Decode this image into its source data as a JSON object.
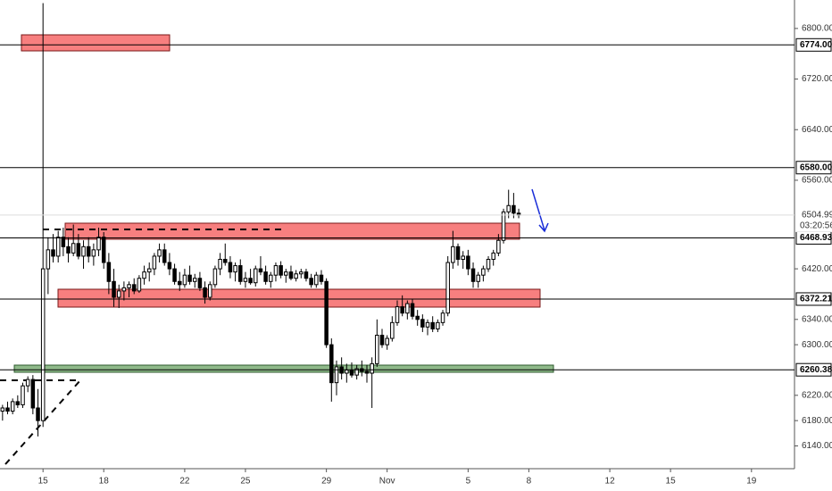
{
  "chart_data": {
    "type": "candlestick",
    "xlim": [
      -0.5,
      156.5
    ],
    "xticks": [
      {
        "value": 8,
        "label": "15"
      },
      {
        "value": 20,
        "label": "18"
      },
      {
        "value": 36,
        "label": "22"
      },
      {
        "value": 48,
        "label": "25"
      },
      {
        "value": 64,
        "label": "29"
      },
      {
        "value": 76,
        "label": "Nov"
      },
      {
        "value": 92,
        "label": "5"
      },
      {
        "value": 104,
        "label": "8"
      },
      {
        "value": 120,
        "label": "12"
      },
      {
        "value": 132,
        "label": "15"
      },
      {
        "value": 148,
        "label": "19"
      }
    ],
    "ylim": [
      6104,
      6845
    ],
    "yticks": [
      {
        "value": 6140,
        "label": "6140.00"
      },
      {
        "value": 6180,
        "label": "6180.00"
      },
      {
        "value": 6220,
        "label": "6220.00"
      },
      {
        "value": 6300,
        "label": "6300.00"
      },
      {
        "value": 6340,
        "label": "6340.00"
      },
      {
        "value": 6420,
        "label": "6420.00"
      },
      {
        "value": 6560,
        "label": "6560.00"
      },
      {
        "value": 6640,
        "label": "6640.00"
      },
      {
        "value": 6720,
        "label": "6720.00"
      },
      {
        "value": 6800,
        "label": "6800.00"
      }
    ],
    "up_color": "#ffffff",
    "down_color": "#000000",
    "price_lines": [
      {
        "value": 6774,
        "label": "6774.00"
      },
      {
        "value": 6580,
        "label": "6580.00"
      },
      {
        "value": 6468.93,
        "label": "6468.93"
      },
      {
        "value": 6372.21,
        "label": "6372.21"
      },
      {
        "value": 6260.38,
        "label": "6260.38"
      }
    ],
    "current_price": {
      "value": 6504.99,
      "label": "6504.99",
      "countdown": "03:20:56"
    },
    "ohlc": [
      [
        6195,
        6205,
        6180,
        6200
      ],
      [
        6200,
        6210,
        6190,
        6195
      ],
      [
        6195,
        6215,
        6190,
        6210
      ],
      [
        6210,
        6220,
        6200,
        6205
      ],
      [
        6205,
        6240,
        6200,
        6235
      ],
      [
        6235,
        6250,
        6225,
        6245
      ],
      [
        6245,
        6252,
        6190,
        6200
      ],
      [
        6200,
        6230,
        6155,
        6180
      ],
      [
        6180,
        6840,
        6170,
        6420
      ],
      [
        6420,
        6470,
        6380,
        6450
      ],
      [
        6450,
        6475,
        6430,
        6440
      ],
      [
        6440,
        6480,
        6430,
        6470
      ],
      [
        6470,
        6485,
        6440,
        6455
      ],
      [
        6455,
        6470,
        6430,
        6445
      ],
      [
        6445,
        6490,
        6440,
        6460
      ],
      [
        6460,
        6475,
        6435,
        6440
      ],
      [
        6440,
        6465,
        6420,
        6455
      ],
      [
        6455,
        6470,
        6430,
        6440
      ],
      [
        6440,
        6460,
        6425,
        6450
      ],
      [
        6450,
        6485,
        6440,
        6470
      ],
      [
        6470,
        6478,
        6420,
        6430
      ],
      [
        6430,
        6445,
        6380,
        6400
      ],
      [
        6400,
        6420,
        6360,
        6375
      ],
      [
        6375,
        6395,
        6358,
        6385
      ],
      [
        6385,
        6400,
        6370,
        6390
      ],
      [
        6390,
        6400,
        6375,
        6395
      ],
      [
        6395,
        6405,
        6380,
        6385
      ],
      [
        6385,
        6410,
        6382,
        6405
      ],
      [
        6405,
        6425,
        6395,
        6415
      ],
      [
        6415,
        6430,
        6400,
        6420
      ],
      [
        6420,
        6445,
        6410,
        6440
      ],
      [
        6440,
        6460,
        6430,
        6450
      ],
      [
        6450,
        6460,
        6425,
        6430
      ],
      [
        6430,
        6445,
        6410,
        6420
      ],
      [
        6420,
        6428,
        6395,
        6400
      ],
      [
        6400,
        6415,
        6385,
        6395
      ],
      [
        6395,
        6420,
        6390,
        6410
      ],
      [
        6410,
        6425,
        6395,
        6400
      ],
      [
        6400,
        6412,
        6390,
        6405
      ],
      [
        6405,
        6415,
        6385,
        6390
      ],
      [
        6390,
        6400,
        6365,
        6375
      ],
      [
        6375,
        6400,
        6370,
        6395
      ],
      [
        6395,
        6425,
        6390,
        6420
      ],
      [
        6420,
        6445,
        6410,
        6435
      ],
      [
        6435,
        6460,
        6425,
        6430
      ],
      [
        6430,
        6440,
        6405,
        6415
      ],
      [
        6415,
        6430,
        6400,
        6425
      ],
      [
        6425,
        6435,
        6395,
        6400
      ],
      [
        6400,
        6415,
        6390,
        6405
      ],
      [
        6405,
        6420,
        6395,
        6398
      ],
      [
        6398,
        6425,
        6392,
        6420
      ],
      [
        6420,
        6440,
        6410,
        6415
      ],
      [
        6415,
        6425,
        6395,
        6400
      ],
      [
        6400,
        6415,
        6390,
        6410
      ],
      [
        6410,
        6430,
        6400,
        6425
      ],
      [
        6425,
        6432,
        6405,
        6410
      ],
      [
        6410,
        6420,
        6398,
        6415
      ],
      [
        6415,
        6425,
        6402,
        6405
      ],
      [
        6405,
        6418,
        6400,
        6412
      ],
      [
        6412,
        6420,
        6405,
        6415
      ],
      [
        6415,
        6420,
        6400,
        6405
      ],
      [
        6405,
        6412,
        6390,
        6395
      ],
      [
        6395,
        6415,
        6390,
        6410
      ],
      [
        6410,
        6418,
        6395,
        6400
      ],
      [
        6400,
        6405,
        6295,
        6300
      ],
      [
        6300,
        6310,
        6210,
        6240
      ],
      [
        6240,
        6275,
        6220,
        6265
      ],
      [
        6265,
        6280,
        6245,
        6255
      ],
      [
        6255,
        6270,
        6240,
        6260
      ],
      [
        6260,
        6272,
        6248,
        6252
      ],
      [
        6252,
        6268,
        6245,
        6262
      ],
      [
        6262,
        6275,
        6250,
        6258
      ],
      [
        6258,
        6268,
        6240,
        6255
      ],
      [
        6255,
        6280,
        6200,
        6270
      ],
      [
        6270,
        6340,
        6265,
        6315
      ],
      [
        6315,
        6325,
        6295,
        6300
      ],
      [
        6300,
        6315,
        6292,
        6310
      ],
      [
        6310,
        6345,
        6305,
        6335
      ],
      [
        6335,
        6370,
        6330,
        6360
      ],
      [
        6360,
        6378,
        6345,
        6350
      ],
      [
        6350,
        6370,
        6340,
        6365
      ],
      [
        6365,
        6372,
        6340,
        6345
      ],
      [
        6345,
        6355,
        6330,
        6340
      ],
      [
        6340,
        6348,
        6320,
        6328
      ],
      [
        6328,
        6340,
        6315,
        6335
      ],
      [
        6335,
        6345,
        6320,
        6325
      ],
      [
        6325,
        6340,
        6320,
        6335
      ],
      [
        6335,
        6355,
        6330,
        6350
      ],
      [
        6350,
        6440,
        6345,
        6430
      ],
      [
        6430,
        6480,
        6420,
        6455
      ],
      [
        6455,
        6460,
        6425,
        6435
      ],
      [
        6435,
        6448,
        6420,
        6440
      ],
      [
        6440,
        6450,
        6410,
        6420
      ],
      [
        6420,
        6430,
        6390,
        6400
      ],
      [
        6400,
        6415,
        6390,
        6410
      ],
      [
        6410,
        6425,
        6400,
        6420
      ],
      [
        6420,
        6440,
        6415,
        6435
      ],
      [
        6435,
        6450,
        6425,
        6445
      ],
      [
        6445,
        6475,
        6440,
        6465
      ],
      [
        6465,
        6515,
        6460,
        6510
      ],
      [
        6510,
        6545,
        6500,
        6520
      ],
      [
        6520,
        6540,
        6500,
        6508
      ],
      [
        6508,
        6515,
        6500,
        6504.99
      ]
    ]
  }
}
